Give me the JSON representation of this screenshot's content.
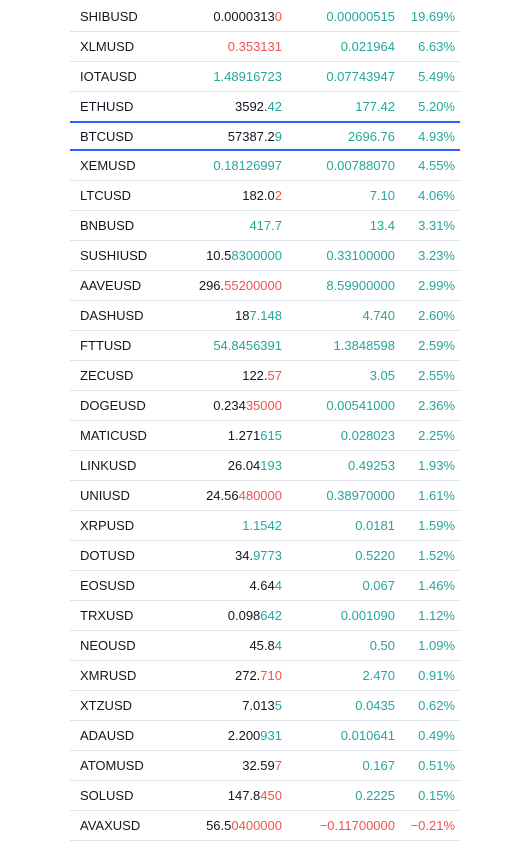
{
  "colors": {
    "up": "#26a69a",
    "down": "#ef5350",
    "text": "#131722",
    "highlight": "#2962ff"
  },
  "highlight_row": 4,
  "table": {
    "rows": [
      {
        "symbol": "SHIBUSD",
        "price_base": "0.0000313",
        "price_changed": "0",
        "price_dir": "down",
        "change": "0.00000515",
        "change_pct": "19.69%",
        "dir": "up"
      },
      {
        "symbol": "XLMUSD",
        "price_changed": "0.353131",
        "price_dir": "down",
        "change": "0.021964",
        "change_pct": "6.63%",
        "dir": "up"
      },
      {
        "symbol": "IOTAUSD",
        "price_changed": "1.48916723",
        "price_dir": "up",
        "change": "0.07743947",
        "change_pct": "5.49%",
        "dir": "up"
      },
      {
        "symbol": "ETHUSD",
        "price_base": "3592.",
        "price_changed": "42",
        "price_dir": "up",
        "change": "177.42",
        "change_pct": "5.20%",
        "dir": "up"
      },
      {
        "symbol": "BTCUSD",
        "price_base": "57387.2",
        "price_changed": "9",
        "price_dir": "up",
        "change": "2696.76",
        "change_pct": "4.93%",
        "dir": "up"
      },
      {
        "symbol": "XEMUSD",
        "price_changed": "0.18126997",
        "price_dir": "up",
        "change": "0.00788070",
        "change_pct": "4.55%",
        "dir": "up"
      },
      {
        "symbol": "LTCUSD",
        "price_base": "182.0",
        "price_changed": "2",
        "price_dir": "down",
        "change": "7.10",
        "change_pct": "4.06%",
        "dir": "up"
      },
      {
        "symbol": "BNBUSD",
        "price_changed": "417.7",
        "price_dir": "up",
        "change": "13.4",
        "change_pct": "3.31%",
        "dir": "up"
      },
      {
        "symbol": "SUSHIUSD",
        "price_base": "10.5",
        "price_changed": "8300000",
        "price_dir": "up",
        "change": "0.33100000",
        "change_pct": "3.23%",
        "dir": "up"
      },
      {
        "symbol": "AAVEUSD",
        "price_base": "296.",
        "price_changed": "55200000",
        "price_dir": "down",
        "change": "8.59900000",
        "change_pct": "2.99%",
        "dir": "up"
      },
      {
        "symbol": "DASHUSD",
        "price_base": "18",
        "price_changed": "7.148",
        "price_dir": "up",
        "change": "4.740",
        "change_pct": "2.60%",
        "dir": "up"
      },
      {
        "symbol": "FTTUSD",
        "price_changed": "54.8456391",
        "price_dir": "up",
        "change": "1.3848598",
        "change_pct": "2.59%",
        "dir": "up"
      },
      {
        "symbol": "ZECUSD",
        "price_base": "122.",
        "price_changed": "57",
        "price_dir": "down",
        "change": "3.05",
        "change_pct": "2.55%",
        "dir": "up"
      },
      {
        "symbol": "DOGEUSD",
        "price_base": "0.234",
        "price_changed": "35000",
        "price_dir": "down",
        "change": "0.00541000",
        "change_pct": "2.36%",
        "dir": "up"
      },
      {
        "symbol": "MATICUSD",
        "price_base": "1.271",
        "price_changed": "615",
        "price_dir": "up",
        "change": "0.028023",
        "change_pct": "2.25%",
        "dir": "up"
      },
      {
        "symbol": "LINKUSD",
        "price_base": "26.04",
        "price_changed": "193",
        "price_dir": "up",
        "change": "0.49253",
        "change_pct": "1.93%",
        "dir": "up"
      },
      {
        "symbol": "UNIUSD",
        "price_base": "24.56",
        "price_changed": "480000",
        "price_dir": "down",
        "change": "0.38970000",
        "change_pct": "1.61%",
        "dir": "up"
      },
      {
        "symbol": "XRPUSD",
        "price_changed": "1.1542",
        "price_dir": "up",
        "change": "0.0181",
        "change_pct": "1.59%",
        "dir": "up"
      },
      {
        "symbol": "DOTUSD",
        "price_base": "34.",
        "price_changed": "9773",
        "price_dir": "up",
        "change": "0.5220",
        "change_pct": "1.52%",
        "dir": "up"
      },
      {
        "symbol": "EOSUSD",
        "price_base": "4.64",
        "price_changed": "4",
        "price_dir": "up",
        "change": "0.067",
        "change_pct": "1.46%",
        "dir": "up"
      },
      {
        "symbol": "TRXUSD",
        "price_base": "0.098",
        "price_changed": "642",
        "price_dir": "up",
        "change": "0.001090",
        "change_pct": "1.12%",
        "dir": "up"
      },
      {
        "symbol": "NEOUSD",
        "price_base": "45.8",
        "price_changed": "4",
        "price_dir": "up",
        "change": "0.50",
        "change_pct": "1.09%",
        "dir": "up"
      },
      {
        "symbol": "XMRUSD",
        "price_base": "272.",
        "price_changed": "710",
        "price_dir": "down",
        "change": "2.470",
        "change_pct": "0.91%",
        "dir": "up"
      },
      {
        "symbol": "XTZUSD",
        "price_base": "7.013",
        "price_changed": "5",
        "price_dir": "up",
        "change": "0.0435",
        "change_pct": "0.62%",
        "dir": "up"
      },
      {
        "symbol": "ADAUSD",
        "price_base": "2.200",
        "price_changed": "931",
        "price_dir": "up",
        "change": "0.010641",
        "change_pct": "0.49%",
        "dir": "up"
      },
      {
        "symbol": "ATOMUSD",
        "price_base": "32.59",
        "price_changed": "7",
        "price_dir": "down",
        "change": "0.167",
        "change_pct": "0.51%",
        "dir": "up"
      },
      {
        "symbol": "SOLUSD",
        "price_base": "147.8",
        "price_changed": "450",
        "price_dir": "down",
        "change": "0.2225",
        "change_pct": "0.15%",
        "dir": "up"
      },
      {
        "symbol": "AVAXUSD",
        "price_base": "56.5",
        "price_changed": "0400000",
        "price_dir": "down",
        "change": "−0.11700000",
        "change_pct": "−0.21%",
        "dir": "down"
      }
    ]
  }
}
